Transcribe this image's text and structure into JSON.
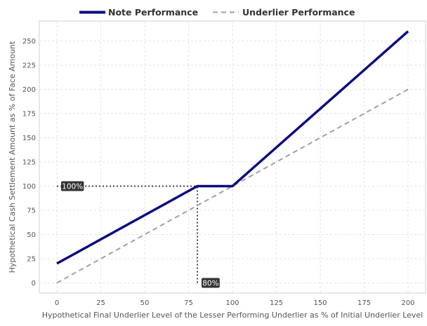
{
  "chart_data": {
    "type": "line",
    "title": "",
    "xlabel": "Hypothetical Final Underlier Level of the Lesser Performing Underlier as % of Initial Underlier Level",
    "ylabel": "Hypothetical Cash Settlement Amount as % of Face Amount",
    "xlim": [
      -10,
      210
    ],
    "ylim": [
      -10,
      270
    ],
    "xticks": [
      0,
      25,
      50,
      75,
      100,
      125,
      150,
      175,
      200
    ],
    "yticks": [
      0,
      25,
      50,
      75,
      100,
      125,
      150,
      175,
      200,
      225,
      250
    ],
    "grid": true,
    "legend_position": "top",
    "series": [
      {
        "name": "Note Performance",
        "color": "#0b0b80",
        "style": "solid",
        "x": [
          0,
          80,
          100,
          200
        ],
        "y": [
          20,
          100,
          100,
          260
        ]
      },
      {
        "name": "Underlier Performance",
        "color": "#a0a0a8",
        "style": "dashed",
        "x": [
          0,
          200
        ],
        "y": [
          0,
          200
        ]
      }
    ],
    "guides": [
      {
        "x": [
          0,
          80
        ],
        "y": [
          100,
          100
        ]
      },
      {
        "x": [
          80,
          80
        ],
        "y": [
          0,
          100
        ]
      }
    ],
    "annotations": [
      {
        "text": "100%",
        "x": 0,
        "y": 100
      },
      {
        "text": "80%",
        "x": 80,
        "y": 0
      }
    ]
  }
}
